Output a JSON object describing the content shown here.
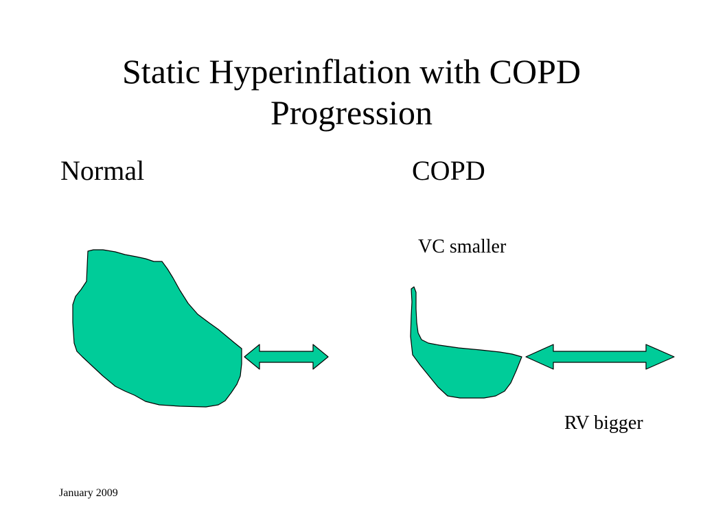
{
  "slide": {
    "title_line1": "Static Hyperinflation with COPD",
    "title_line2": "Progression",
    "left_label": "Normal",
    "right_label": "COPD",
    "vc_note": "VC smaller",
    "rv_note": "RV bigger",
    "footer": "January 2009"
  },
  "colors": {
    "shape_fill": "#00CC99",
    "outline": "#000000",
    "background": "#FFFFFF"
  }
}
